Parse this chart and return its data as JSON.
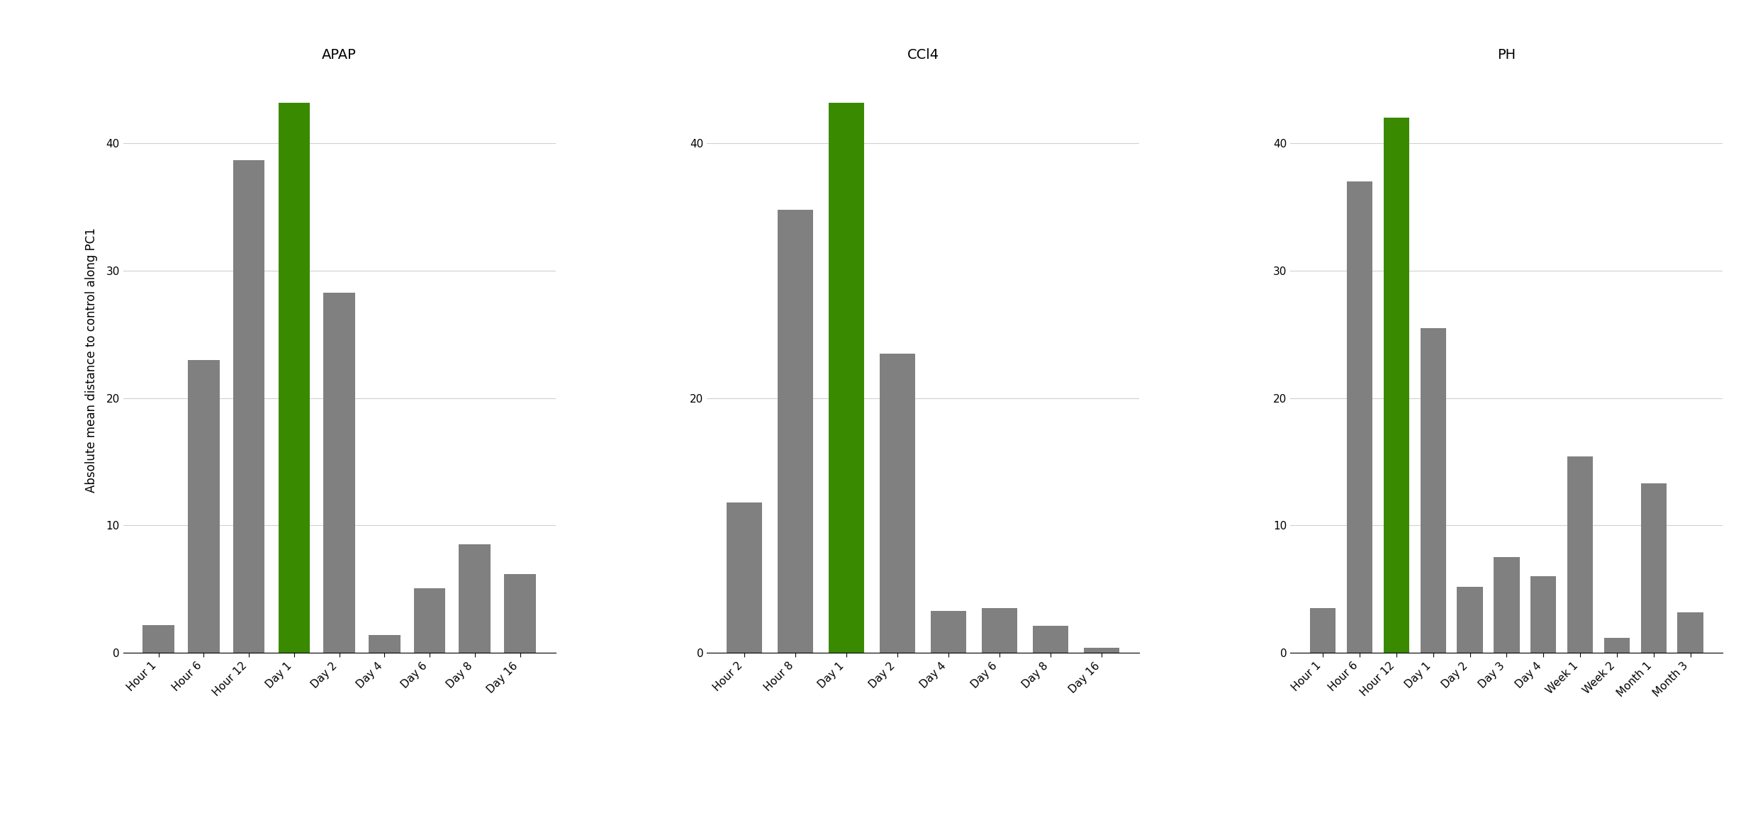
{
  "panels": [
    {
      "title": "APAP",
      "categories": [
        "Hour 1",
        "Hour 6",
        "Hour 12",
        "Day 1",
        "Day 2",
        "Day 4",
        "Day 6",
        "Day 8",
        "Day 16"
      ],
      "values": [
        2.2,
        23.0,
        38.7,
        43.2,
        28.3,
        1.4,
        5.1,
        8.5,
        6.2
      ],
      "highlight_index": 3,
      "ylim": [
        0,
        46
      ],
      "yticks": [
        0,
        10,
        20,
        30,
        40
      ]
    },
    {
      "title": "CCl4",
      "categories": [
        "Hour 2",
        "Hour 8",
        "Day 1",
        "Day 2",
        "Day 4",
        "Day 6",
        "Day 8",
        "Day 16"
      ],
      "values": [
        11.8,
        34.8,
        43.2,
        23.5,
        3.3,
        3.5,
        2.1,
        0.4
      ],
      "highlight_index": 2,
      "ylim": [
        0,
        46
      ],
      "yticks": [
        0,
        20,
        40
      ]
    },
    {
      "title": "PH",
      "categories": [
        "Hour 1",
        "Hour 6",
        "Hour 12",
        "Day 1",
        "Day 2",
        "Day 3",
        "Day 4",
        "Week 1",
        "Week 2",
        "Month 1",
        "Month 3"
      ],
      "values": [
        3.5,
        37.0,
        42.0,
        25.5,
        5.2,
        7.5,
        6.0,
        15.4,
        1.2,
        13.3,
        3.2
      ],
      "highlight_index": 2,
      "ylim": [
        0,
        46
      ],
      "yticks": [
        0,
        10,
        20,
        30,
        40
      ]
    }
  ],
  "ylabel": "Absolute mean distance to control along PC1",
  "bar_color_default": "#808080",
  "bar_color_highlight": "#3a8a00",
  "background_color": "#ffffff",
  "grid_color": "#d0d0d0",
  "title_fontsize": 14,
  "label_fontsize": 12,
  "tick_fontsize": 11
}
